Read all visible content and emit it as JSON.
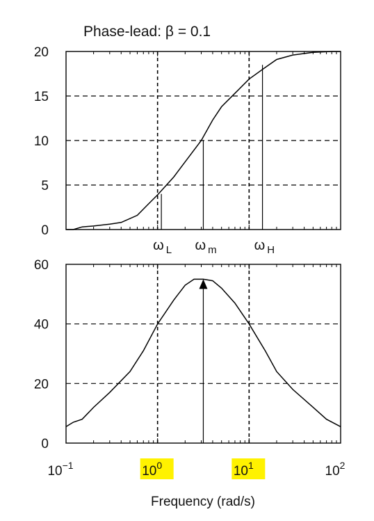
{
  "chart_data": [
    {
      "type": "line",
      "title": "Phase-lead: β = 0.1",
      "x_scale": "log",
      "xlim": [
        0.1,
        100
      ],
      "ylim": [
        0,
        20
      ],
      "yticks": [
        "0",
        "5",
        "10",
        "15",
        "20"
      ],
      "grid": "dashed horizontal",
      "x": [
        0.1,
        0.12,
        0.15,
        0.2,
        0.3,
        0.4,
        0.6,
        0.8,
        1.0,
        1.5,
        2.0,
        3.0,
        4.0,
        5.0,
        7.0,
        10.0,
        15.0,
        20.0,
        30.0,
        50.0,
        80.0,
        100.0
      ],
      "values": [
        0,
        0,
        0.3,
        0.4,
        0.6,
        0.8,
        1.6,
        2.9,
        3.9,
        5.9,
        7.6,
        10.0,
        12.3,
        13.8,
        15.3,
        16.9,
        18.2,
        19.1,
        19.6,
        19.9,
        20,
        20
      ],
      "vertical_dashed_at": [
        1.0,
        10.0
      ],
      "markers": [
        {
          "label": "ω",
          "sub": "L",
          "x": 1.1,
          "y": 4.0
        },
        {
          "label": "ω",
          "sub": "m",
          "x": 3.16,
          "y": 10.0
        },
        {
          "label": "ω",
          "sub": "H",
          "x": 14.0,
          "y": 18.5
        }
      ]
    },
    {
      "type": "line",
      "x_scale": "log",
      "xlim": [
        0.1,
        100
      ],
      "ylim": [
        0,
        60
      ],
      "yticks": [
        "0",
        "20",
        "40",
        "60"
      ],
      "grid": "dashed horizontal",
      "xticks": [
        {
          "base": "10",
          "exp": "−1",
          "value": 0.1,
          "highlight": false
        },
        {
          "base": "10",
          "exp": "0",
          "value": 1,
          "highlight": true
        },
        {
          "base": "10",
          "exp": "1",
          "value": 10,
          "highlight": true
        },
        {
          "base": "10",
          "exp": "2",
          "value": 100,
          "highlight": false
        }
      ],
      "xlabel": "Frequency (rad/s)",
      "x": [
        0.1,
        0.12,
        0.15,
        0.2,
        0.3,
        0.5,
        0.7,
        1.0,
        1.5,
        2.0,
        2.5,
        3.16,
        4.0,
        5.0,
        7.0,
        10.0,
        15.0,
        20.0,
        30.0,
        50.0,
        70.0,
        100.0
      ],
      "values": [
        5.5,
        7,
        8,
        12,
        17,
        24,
        31,
        40,
        48,
        53,
        55,
        55,
        54.5,
        52,
        47,
        40,
        31,
        24,
        18,
        12,
        8,
        5.5
      ],
      "vertical_dashed_at": [
        1.0,
        10.0
      ],
      "peak_arrow": {
        "x": 3.16,
        "y": 55
      }
    }
  ]
}
